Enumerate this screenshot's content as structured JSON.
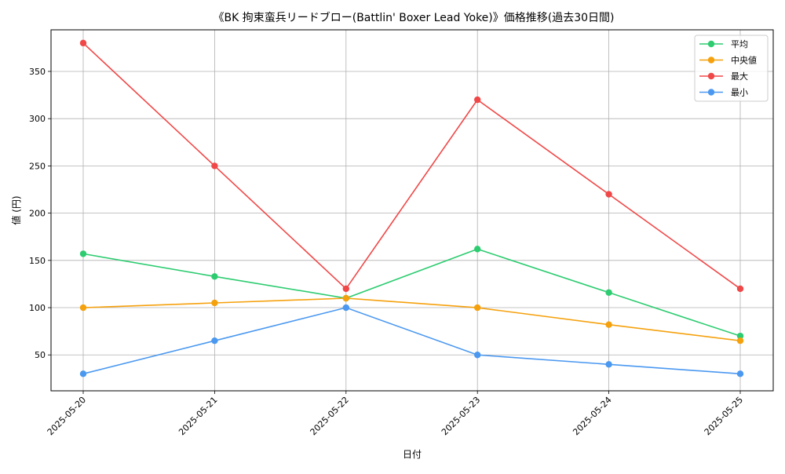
{
  "chart_data": {
    "type": "line",
    "title": "《BK 拘束蛮兵リードブロー(Battlin' Boxer Lead Yoke)》価格推移(過去30日間)",
    "xlabel": "日付",
    "ylabel": "値 (円)",
    "categories": [
      "2025-05-20",
      "2025-05-21",
      "2025-05-22",
      "2025-05-23",
      "2025-05-24",
      "2025-05-25"
    ],
    "ylim": [
      12,
      394
    ],
    "yticks": [
      50,
      100,
      150,
      200,
      250,
      300,
      350
    ],
    "grid": true,
    "legend_position": "top-right",
    "series": [
      {
        "name": "平均",
        "color": "#2ecc71",
        "values": [
          157,
          133,
          110,
          162,
          116,
          70
        ]
      },
      {
        "name": "中央値",
        "color": "#f5a10d",
        "values": [
          100,
          105,
          110,
          100,
          82,
          65
        ]
      },
      {
        "name": "最大",
        "color": "#f04848",
        "values": [
          380,
          250,
          120,
          320,
          220,
          120
        ]
      },
      {
        "name": "最小",
        "color": "#4a98f0",
        "values": [
          30,
          65,
          100,
          50,
          40,
          30
        ]
      }
    ]
  }
}
